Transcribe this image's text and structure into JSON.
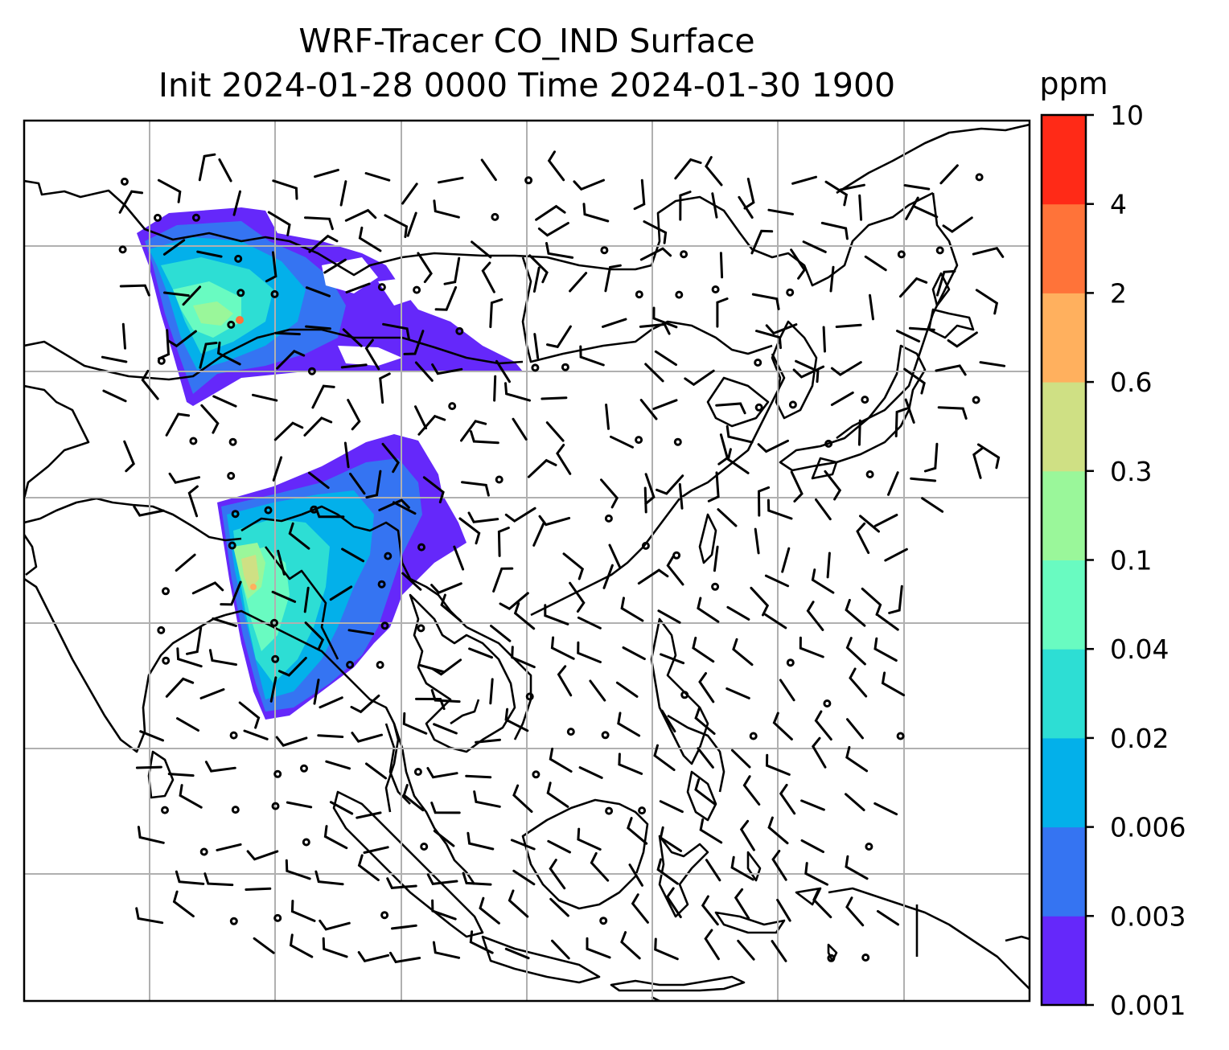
{
  "title": {
    "line1": "WRF-Tracer CO_IND Surface",
    "line2": "Init 2024-01-28 0000 Time 2024-01-30 1900"
  },
  "colorbar": {
    "unit": "ppm",
    "levels": [
      "0.001",
      "0.003",
      "0.006",
      "0.02",
      "0.04",
      "0.1",
      "0.3",
      "0.6",
      "2",
      "4",
      "10"
    ],
    "colors": [
      "#6528fa",
      "#3574f2",
      "#03b0ea",
      "#2dded4",
      "#69fbc1",
      "#9af79a",
      "#cfe084",
      "#ffb05e",
      "#ff7339",
      "#ff2a17"
    ]
  },
  "map": {
    "variable": "CO_IND tracer concentration",
    "wind_overlay": "barbs",
    "coastline_color": "#000000",
    "gridline_color": "#b0b0b0"
  }
}
